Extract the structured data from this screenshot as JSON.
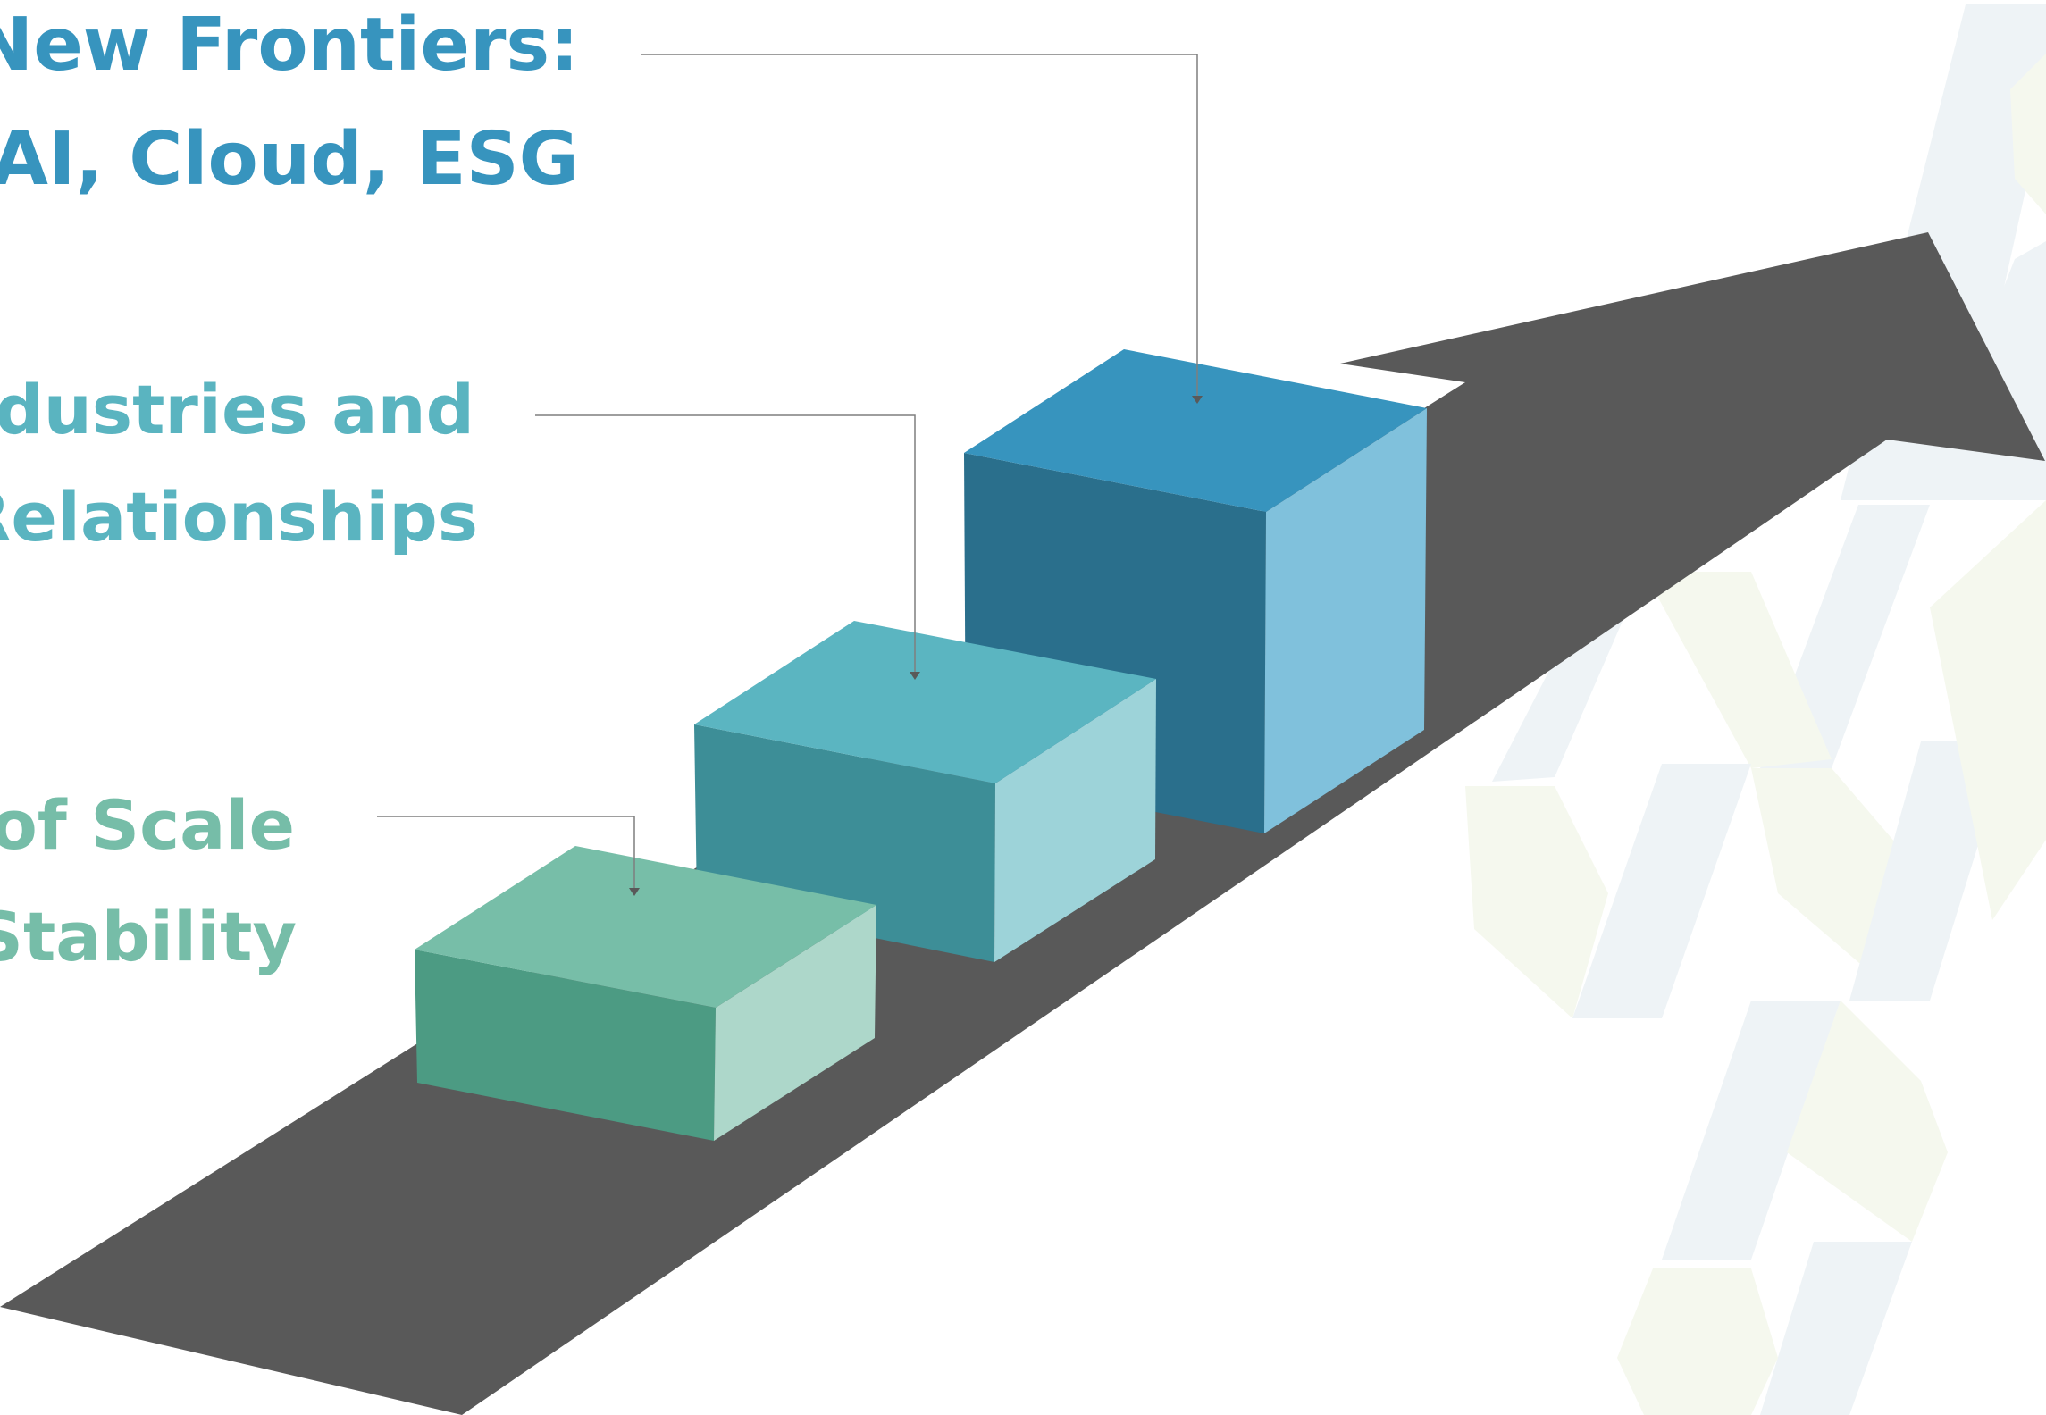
{
  "slide": {
    "labels": [
      {
        "line1": "New Frontiers:",
        "line2": "AI, Cloud, ESG",
        "color": "#3794BE"
      },
      {
        "line1": "Industries and",
        "line2": "Relationships",
        "color": "#5AB4C0"
      },
      {
        "line1": "Economies of Scale",
        "line2": "Stability",
        "color": "#76BDA8"
      }
    ]
  },
  "colors": {
    "arrow": "#595959",
    "connector": "#7f7f7f",
    "step_large": {
      "top": "#3794BE",
      "front": "#2A6F8C",
      "side": "#80C1DC"
    },
    "step_medium": {
      "top": "#5BB5C1",
      "front": "#3D8E97",
      "side": "#9DD3D9"
    },
    "step_small": {
      "top": "#77BEA8",
      "front": "#4C9B83",
      "side": "#ADD7CA"
    },
    "bg_pattern_blue": "#EEF3F6",
    "bg_pattern_green": "#F5F8EE"
  }
}
